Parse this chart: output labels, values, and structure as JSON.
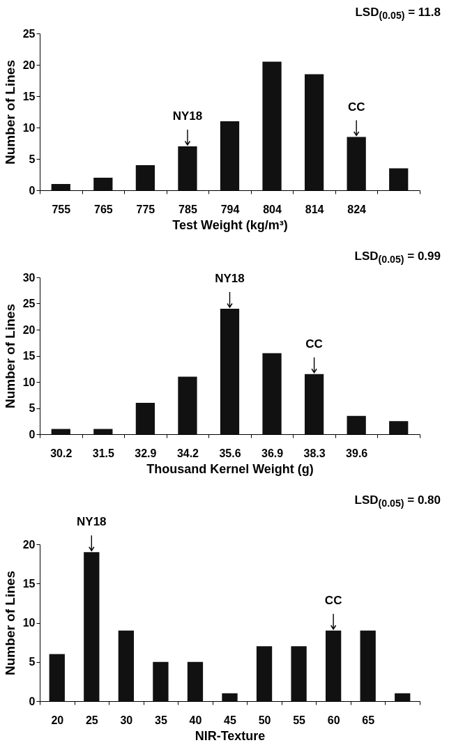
{
  "chart_data": [
    {
      "type": "bar",
      "categories": [
        "755",
        "765",
        "775",
        "785",
        "794",
        "804",
        "814",
        "824",
        null
      ],
      "values": [
        1,
        2,
        4,
        7,
        11,
        20.5,
        18.5,
        8.5,
        3.5
      ],
      "color": "#111111",
      "xlabel": "Test Weight (kg/m³)",
      "ylabel": "Number of Lines",
      "ylim": [
        0,
        25
      ],
      "yticks": [
        0,
        5,
        10,
        15,
        20,
        25
      ],
      "grid": false,
      "annotations": [
        {
          "text": "NY18",
          "x": "785",
          "y": 7
        },
        {
          "text": "CC",
          "x": "824",
          "y": 8.5
        },
        "LSD$_{(0.05)}$ = 11.8"
      ]
    },
    {
      "type": "bar",
      "categories": [
        "30.2",
        "31.5",
        "32.9",
        "34.2",
        "35.6",
        "36.9",
        "38.3",
        "39.6",
        null
      ],
      "values": [
        1,
        1,
        6,
        11,
        24,
        15.5,
        11.5,
        3.5,
        2.5
      ],
      "color": "#111111",
      "xlabel": "Thousand Kernel Weight (g)",
      "ylabel": "Number of Lines",
      "ylim": [
        0,
        30
      ],
      "yticks": [
        0,
        5,
        10,
        15,
        20,
        25,
        30
      ],
      "grid": false,
      "annotations": [
        {
          "text": "NY18",
          "x": "35.6",
          "y": 24
        },
        {
          "text": "CC",
          "x": "38.3",
          "y": 11.5
        },
        "LSD$_{(0.05)}$ = 0.99"
      ]
    },
    {
      "type": "bar",
      "categories": [
        "20",
        "25",
        "30",
        "35",
        "40",
        "45",
        "50",
        "55",
        "60",
        "65",
        null
      ],
      "values": [
        6,
        19,
        9,
        5,
        5,
        1,
        7,
        7,
        9,
        9,
        1
      ],
      "color": "#111111",
      "xlabel": "NIR-Texture",
      "ylabel": "Number of  Lines",
      "ylim": [
        0,
        20
      ],
      "yticks": [
        0,
        5,
        10,
        15,
        20
      ],
      "grid": false,
      "annotations": [
        {
          "text": "NY18",
          "x": "25",
          "y": 19
        },
        {
          "text": "CC",
          "x": "60",
          "y": 9
        },
        "LSD$_{(0.05)}$ = 0.80"
      ]
    }
  ]
}
